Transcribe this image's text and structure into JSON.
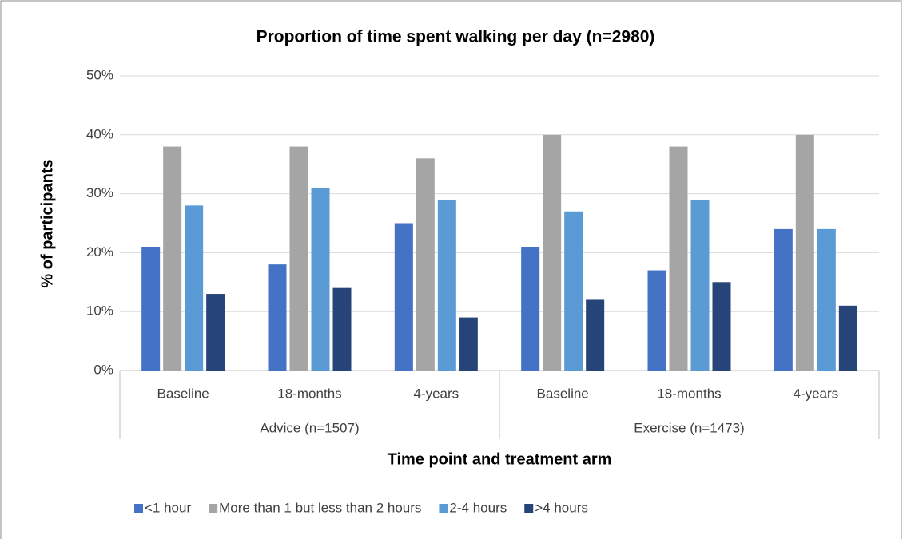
{
  "chart_data": {
    "type": "bar",
    "title": "Proportion of time spent walking per day (n=2980)",
    "x_label": "Time point and treatment arm",
    "y_label": "% of participants",
    "groups": [
      {
        "name": "Advice (n=1507)",
        "categories": [
          "Baseline",
          "18-months",
          "4-years"
        ]
      },
      {
        "name": "Exercise (n=1473)",
        "categories": [
          "Baseline",
          "18-months",
          "4-years"
        ]
      }
    ],
    "series": [
      {
        "name": "<1 hour",
        "color": "#4472c4",
        "values": [
          21,
          18,
          25,
          21,
          17,
          24
        ]
      },
      {
        "name": "More than 1 but less than 2 hours",
        "color": "#a5a5a5",
        "values": [
          38,
          38,
          36,
          40,
          38,
          40
        ]
      },
      {
        "name": "2-4 hours",
        "color": "#5b9bd5",
        "values": [
          28,
          31,
          29,
          27,
          29,
          24
        ]
      },
      {
        "name": ">4 hours",
        "color": "#264478",
        "values": [
          13,
          14,
          9,
          12,
          15,
          11
        ]
      }
    ],
    "ylim": [
      0,
      50
    ],
    "yticks": [
      {
        "value": 0,
        "label": "0%"
      },
      {
        "value": 10,
        "label": "10%"
      },
      {
        "value": 20,
        "label": "20%"
      },
      {
        "value": 30,
        "label": "30%"
      },
      {
        "value": 40,
        "label": "40%"
      },
      {
        "value": 50,
        "label": "50%"
      }
    ],
    "grid": true,
    "legend": "bottom"
  }
}
